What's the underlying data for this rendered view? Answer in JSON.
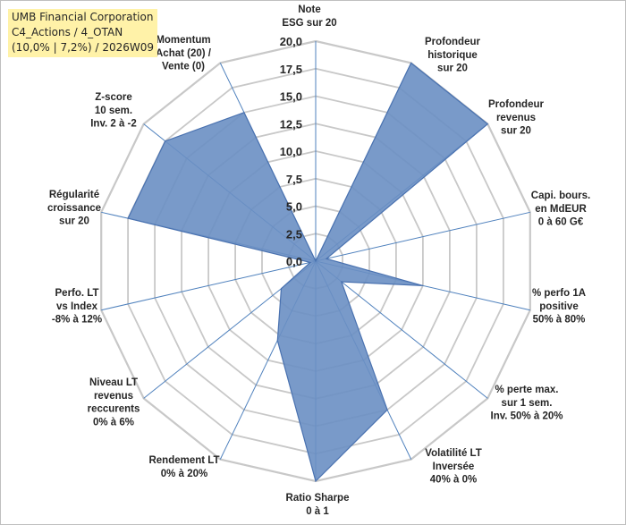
{
  "title": {
    "line1": "UMB Financial Corporation",
    "line2": "C4_Actions / 4_OTAN",
    "line3": "(10,0% | 7,2%) / 2026W09"
  },
  "colors": {
    "fill": "#6a8fc3",
    "stroke": "#4a72b0",
    "grid": "#c8c8c8",
    "spoke": "#4f81bd",
    "title_bg": "#fff2a8"
  },
  "chart_data": {
    "type": "radar",
    "rmin": 0,
    "rmax": 20,
    "ticks": [
      "0,0",
      "2,5",
      "5,0",
      "7,5",
      "10,0",
      "12,5",
      "15,0",
      "17,5",
      "20,0"
    ],
    "axes": [
      {
        "label": [
          "Note",
          "ESG sur 20"
        ],
        "value": 0
      },
      {
        "label": [
          "Profondeur",
          "historique",
          "sur 20"
        ],
        "value": 20
      },
      {
        "label": [
          "Profondeur",
          "revenus",
          "sur 20"
        ],
        "value": 20
      },
      {
        "label": [
          "Capi. bours.",
          "en MdEUR",
          "0 à 60 G€"
        ],
        "value": 1
      },
      {
        "label": [
          "% perfo 1A",
          "positive",
          "50% à 80%"
        ],
        "value": 10
      },
      {
        "label": [
          "% perte max.",
          "sur 1 sem.",
          "Inv. 50% à 20%"
        ],
        "value": 3
      },
      {
        "label": [
          "Volatilité LT",
          "Inversée",
          "40% à 0%"
        ],
        "value": 15
      },
      {
        "label": [
          "Ratio Sharpe",
          "0 à 1"
        ],
        "value": 20
      },
      {
        "label": [
          "Rendement LT",
          "0% à 20%"
        ],
        "value": 8
      },
      {
        "label": [
          "Niveau LT",
          "revenus",
          "reccurents",
          "0% à 6%"
        ],
        "value": 4
      },
      {
        "label": [
          "Perfo. LT",
          "vs Index",
          "-8% à 12%"
        ],
        "value": 0.5
      },
      {
        "label": [
          "Régularité",
          "croissance",
          "sur 20"
        ],
        "value": 17.5
      },
      {
        "label": [
          "Z-score",
          "10 sem.",
          "Inv. 2 à -2"
        ],
        "value": 17.5
      },
      {
        "label": [
          "Momentum",
          "Achat (20) /",
          "Vente (0)"
        ],
        "value": 15
      }
    ]
  }
}
